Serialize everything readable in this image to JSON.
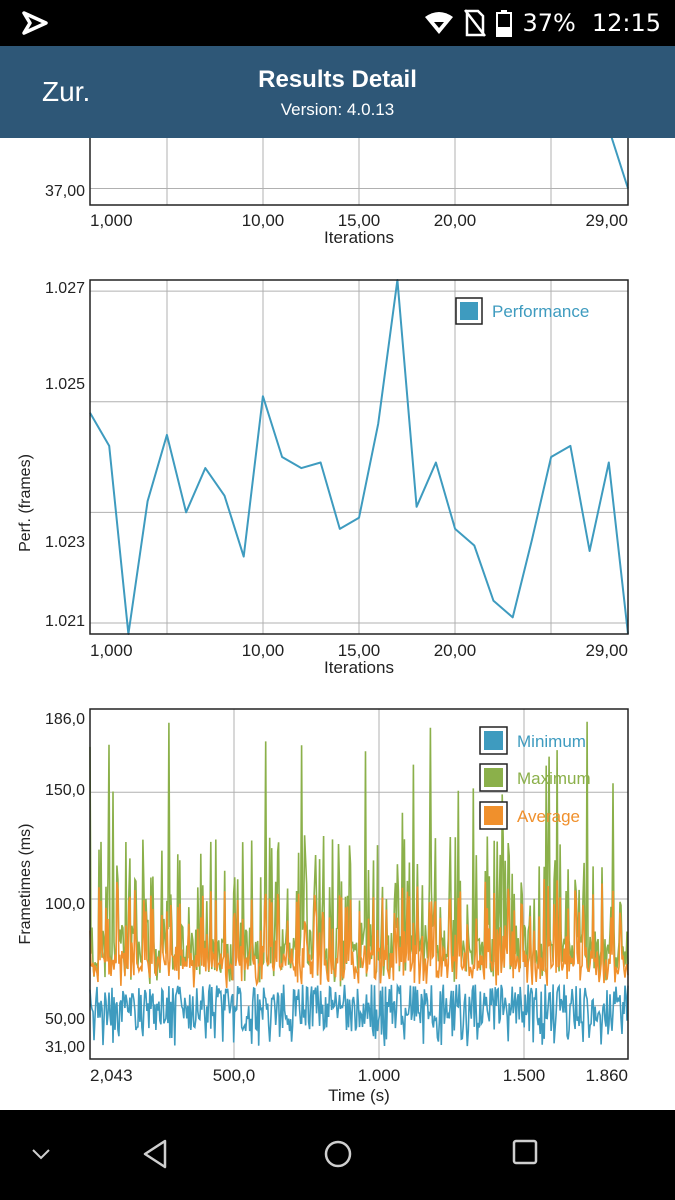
{
  "status_bar": {
    "battery": "37%",
    "time": "12:15",
    "icons": [
      "app-notification-icon",
      "wifi-icon",
      "no-sim-icon",
      "battery-icon"
    ]
  },
  "header": {
    "back_label": "Zur.",
    "title": "Results Detail",
    "version": "Version: 4.0.13",
    "background": "#2e5777"
  },
  "nav_bar": {
    "icons": [
      "chevron-down-icon",
      "back-triangle-icon",
      "home-circle-icon",
      "recents-square-icon"
    ]
  },
  "colors": {
    "performance": "#3e9bbf",
    "minimum": "#3e9bbf",
    "maximum": "#8bb04a",
    "average": "#f0902c",
    "grid": "#b0b0b0"
  },
  "chart_data": [
    {
      "type": "line",
      "partial": true,
      "title": "",
      "xlabel": "Iterations",
      "ylabel": "",
      "xlim": [
        1,
        29
      ],
      "x_ticks": [
        "1,000",
        "10,00",
        "15,00",
        "20,00",
        "29,00"
      ],
      "y_ticks": [
        "37,00"
      ],
      "ylim": [
        36.85,
        37.55
      ],
      "series": [
        {
          "x": [
            22,
            22.9,
            28.1,
            29
          ],
          "values": [
            37.6,
            37.49,
            37.49,
            37.0
          ]
        }
      ]
    },
    {
      "type": "line",
      "title": "",
      "xlabel": "Iterations",
      "ylabel": "Perf. (frames)",
      "xlim": [
        1,
        29
      ],
      "ylim": [
        1.0208,
        1.0272
      ],
      "x_ticks": [
        "1,000",
        "10,00",
        "15,00",
        "20,00",
        "29,00"
      ],
      "y_ticks": [
        "1.021",
        "1.023",
        "1.025",
        "1.027"
      ],
      "legend": "top-right",
      "series": [
        {
          "name": "Performance",
          "x": [
            1,
            2,
            3,
            4,
            5,
            6,
            7,
            8,
            9,
            10,
            11,
            12,
            13,
            14,
            15,
            16,
            17,
            18,
            19,
            20,
            21,
            22,
            23,
            24,
            25,
            26,
            27,
            28,
            29
          ],
          "values": [
            1.0248,
            1.0242,
            1.0208,
            1.0232,
            1.0244,
            1.023,
            1.0238,
            1.0233,
            1.0222,
            1.0251,
            1.024,
            1.0238,
            1.0239,
            1.0227,
            1.0229,
            1.0246,
            1.0272,
            1.0231,
            1.0239,
            1.0227,
            1.0224,
            1.0214,
            1.0211,
            1.0225,
            1.024,
            1.0242,
            1.0223,
            1.0239,
            1.0208
          ]
        }
      ]
    },
    {
      "type": "line",
      "title": "",
      "xlabel": "Time (s)",
      "ylabel": "Frametimes (ms)",
      "xlim": [
        2.043,
        1860
      ],
      "ylim": [
        25,
        189
      ],
      "x_ticks": [
        "2,043",
        "500,0",
        "1.000",
        "1.500",
        "1.860"
      ],
      "y_ticks": [
        "31,00",
        "50,00",
        "100,0",
        "150,0",
        "186,0"
      ],
      "legend": "top-right",
      "series": [
        {
          "name": "Minimum",
          "summary": {
            "min": 31,
            "typical_low": 40,
            "typical_high": 62
          }
        },
        {
          "name": "Maximum",
          "summary": {
            "min": 50,
            "typical": 75,
            "peak": 186
          }
        },
        {
          "name": "Average",
          "summary": {
            "min": 45,
            "typical": 65,
            "peak": 110
          }
        }
      ]
    }
  ]
}
